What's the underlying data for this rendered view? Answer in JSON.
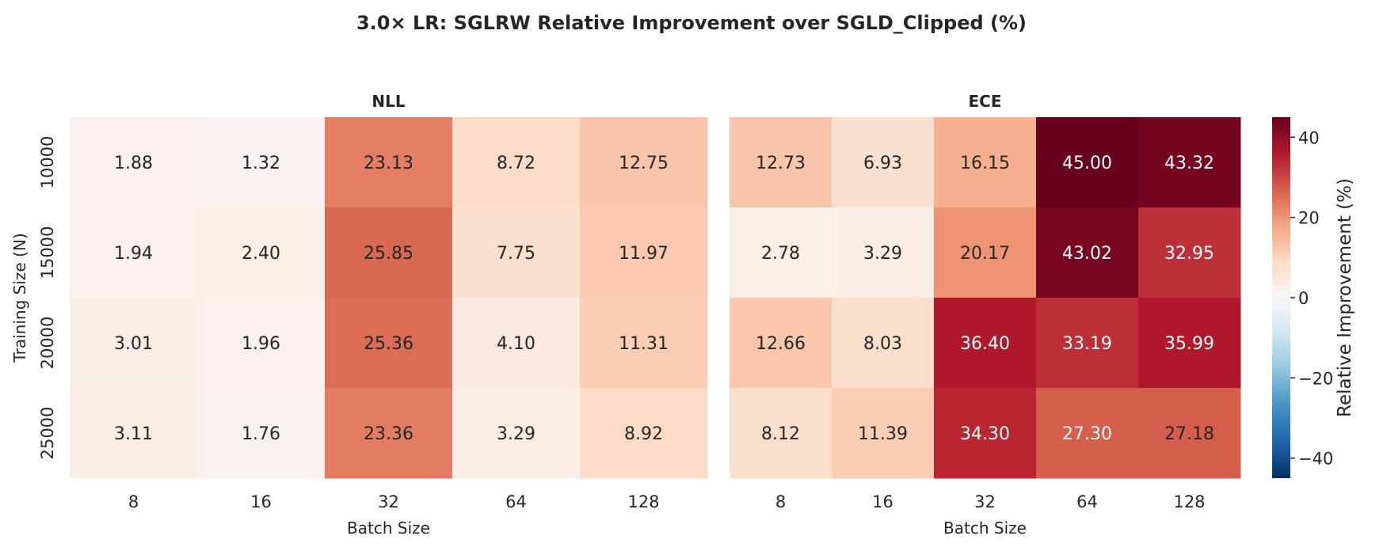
{
  "chart_data": [
    {
      "type": "heatmap",
      "suptitle": "3.0× LR: SGLRW Relative Improvement over SGLD_Clipped (%)",
      "title": "NLL",
      "xlabel": "Batch Size",
      "ylabel": "Training Size (N)",
      "x_categories": [
        "8",
        "16",
        "32",
        "64",
        "128"
      ],
      "y_categories": [
        "10000",
        "15000",
        "20000",
        "25000"
      ],
      "values": [
        [
          1.88,
          1.32,
          23.13,
          8.72,
          12.75
        ],
        [
          1.94,
          2.4,
          25.85,
          7.75,
          11.97
        ],
        [
          3.01,
          1.96,
          25.36,
          4.1,
          11.31
        ],
        [
          3.11,
          1.76,
          23.36,
          3.29,
          8.92
        ]
      ],
      "value_format": "2 decimals"
    },
    {
      "type": "heatmap",
      "title": "ECE",
      "xlabel": "Batch Size",
      "x_categories": [
        "8",
        "16",
        "32",
        "64",
        "128"
      ],
      "y_categories": [
        "10000",
        "15000",
        "20000",
        "25000"
      ],
      "values": [
        [
          12.73,
          6.93,
          16.15,
          45.0,
          43.32
        ],
        [
          2.78,
          3.29,
          20.17,
          43.02,
          32.95
        ],
        [
          12.66,
          8.03,
          36.4,
          33.19,
          35.99
        ],
        [
          8.12,
          11.39,
          34.3,
          27.3,
          27.18
        ]
      ],
      "value_format": "2 decimals"
    }
  ],
  "colorbar": {
    "label": "Relative Improvement (%)",
    "colormap": "RdBu_r",
    "vmin": -45,
    "vmax": 45,
    "ticks": [
      "40",
      "20",
      "0",
      "−20",
      "−40"
    ],
    "tick_values": [
      40,
      20,
      0,
      -20,
      -40
    ]
  }
}
